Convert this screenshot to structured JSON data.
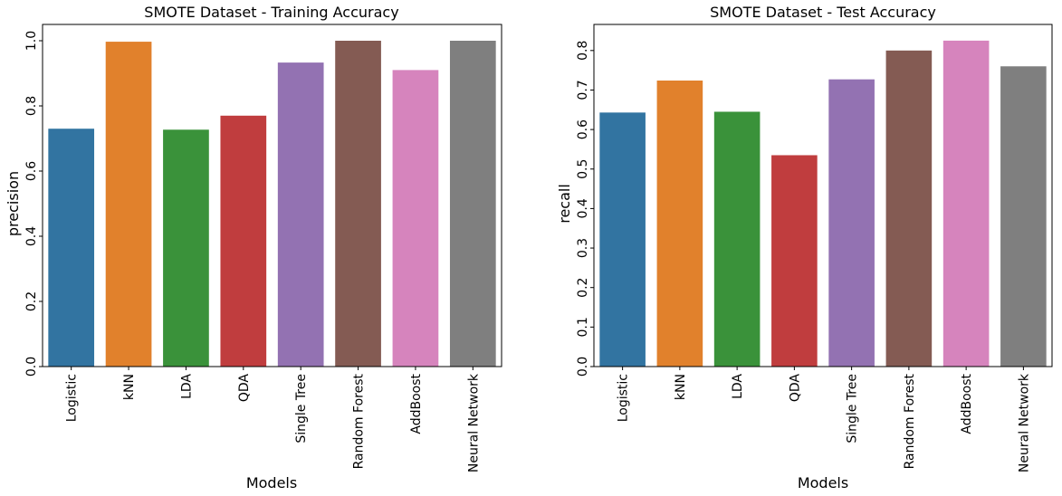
{
  "colors": {
    "Logistic": "#3274a1",
    "kNN": "#e1812c",
    "LDA": "#3a923a",
    "QDA": "#c03d3e",
    "Single Tree": "#9372b2",
    "Random Forest": "#845b53",
    "AddBoost": "#d684bd",
    "Neural Network": "#7f7f7f"
  },
  "chart_data": [
    {
      "type": "bar",
      "title": "SMOTE Dataset - Training Accuracy",
      "xlabel": "Models",
      "ylabel": "precision",
      "categories": [
        "Logistic",
        "kNN",
        "LDA",
        "QDA",
        "Single Tree",
        "Random Forest",
        "AddBoost",
        "Neural Network"
      ],
      "values": [
        0.73,
        0.997,
        0.727,
        0.77,
        0.933,
        1.0,
        0.91,
        1.0
      ],
      "ylim": [
        0,
        1.05
      ],
      "yticks": [
        "0.0",
        "0.2",
        "0.4",
        "0.6",
        "0.8",
        "1.0"
      ],
      "grid": false
    },
    {
      "type": "bar",
      "title": "SMOTE Dataset - Test Accuracy",
      "xlabel": "Models",
      "ylabel": "recall",
      "categories": [
        "Logistic",
        "kNN",
        "LDA",
        "QDA",
        "Single Tree",
        "Random Forest",
        "AddBoost",
        "Neural Network"
      ],
      "values": [
        0.643,
        0.724,
        0.645,
        0.535,
        0.727,
        0.8,
        0.825,
        0.76
      ],
      "ylim": [
        0,
        0.866
      ],
      "yticks": [
        "0.0",
        "0.1",
        "0.2",
        "0.3",
        "0.4",
        "0.5",
        "0.6",
        "0.7",
        "0.8"
      ],
      "grid": false
    }
  ]
}
